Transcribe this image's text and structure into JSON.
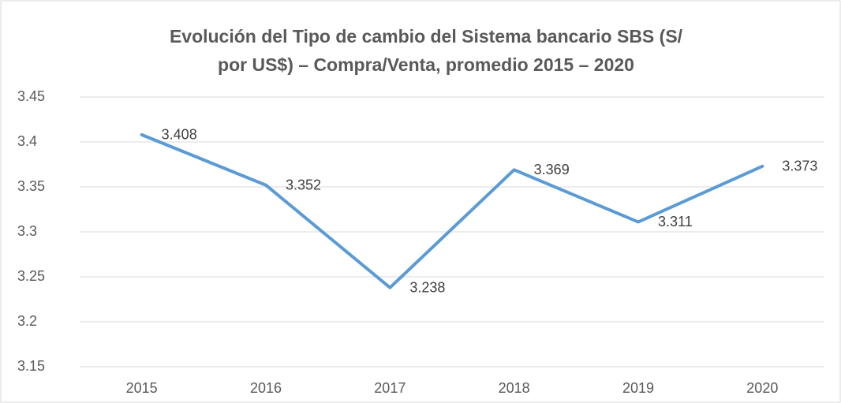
{
  "chart_data": {
    "type": "line",
    "title": [
      "Evolución del Tipo de cambio del Sistema bancario SBS (S/",
      "por US$) – Compra/Venta, promedio 2015 – 2020"
    ],
    "categories": [
      "2015",
      "2016",
      "2017",
      "2018",
      "2019",
      "2020"
    ],
    "series": [
      {
        "color": "#5b9bd5",
        "values": [
          3.408,
          3.352,
          3.238,
          3.369,
          3.311,
          3.373
        ]
      }
    ],
    "ylim": [
      3.15,
      3.45
    ],
    "yticks": [
      3.15,
      3.2,
      3.25,
      3.3,
      3.35,
      3.4,
      3.45
    ],
    "grid": true
  }
}
